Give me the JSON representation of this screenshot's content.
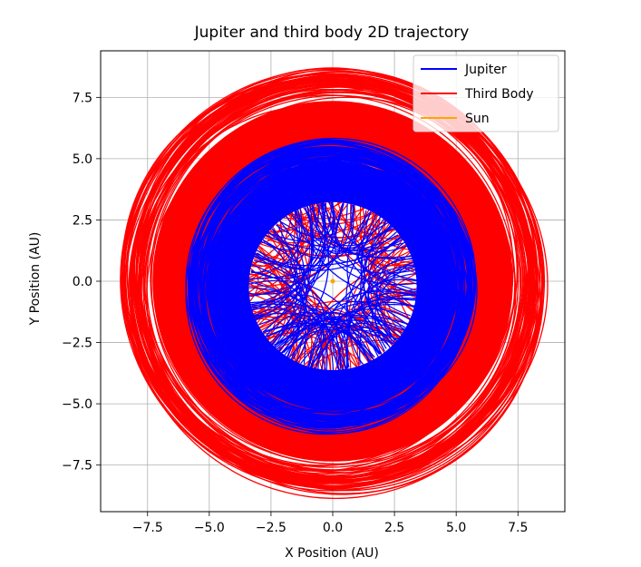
{
  "chart_data": {
    "type": "line",
    "title": "Jupiter and third body 2D trajectory",
    "xlabel": "X Position (AU)",
    "ylabel": "Y Position (AU)",
    "xlim": [
      -9.4,
      9.4
    ],
    "ylim": [
      -9.4,
      9.4
    ],
    "xticks": [
      -7.5,
      -5.0,
      -2.5,
      0.0,
      2.5,
      5.0,
      7.5
    ],
    "yticks": [
      -7.5,
      -5.0,
      -2.5,
      0.0,
      2.5,
      5.0,
      7.5
    ],
    "xtick_labels": [
      "−7.5",
      "−5.0",
      "−2.5",
      "0.0",
      "2.5",
      "5.0",
      "7.5"
    ],
    "ytick_labels": [
      "−7.5",
      "−5.0",
      "−2.5",
      "0.0",
      "2.5",
      "5.0",
      "7.5"
    ],
    "grid": true,
    "legend_position": "top-right",
    "series": [
      {
        "name": "Jupiter",
        "color": "#0000ff",
        "center": [
          0.0,
          -0.2
        ],
        "r_inner": 3.4,
        "r_outer": 5.05,
        "r_max": 5.8
      },
      {
        "name": "Third Body",
        "color": "#ff0000",
        "center": [
          0.0,
          0.0
        ],
        "r_inner": 4.9,
        "r_outer": 7.3,
        "r_max": 8.6
      },
      {
        "name": "Sun",
        "color": "#ffa500",
        "x": [
          0.0
        ],
        "y": [
          0.0
        ]
      }
    ]
  }
}
